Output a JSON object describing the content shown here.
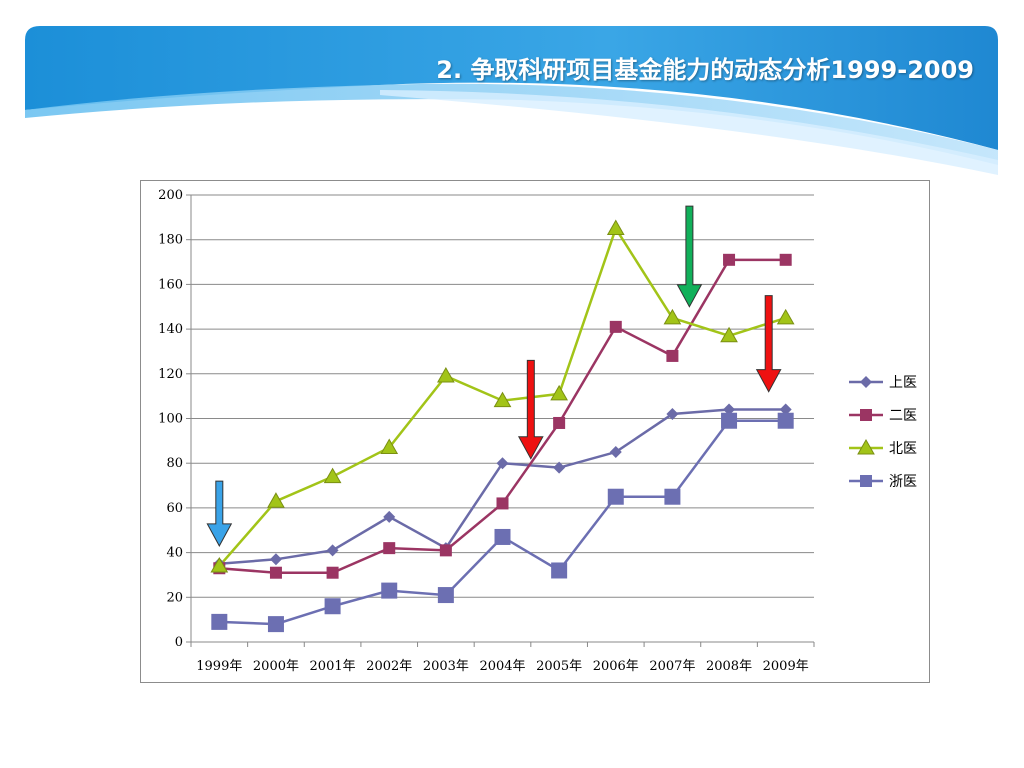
{
  "slide": {
    "title": "2. 争取科研项目基金能力的动态分析1999-2009"
  },
  "chart_data": {
    "type": "line",
    "title": "",
    "xlabel": "",
    "ylabel": "",
    "categories": [
      "1999年",
      "2000年",
      "2001年",
      "2002年",
      "2003年",
      "2004年",
      "2005年",
      "2006年",
      "2007年",
      "2008年",
      "2009年"
    ],
    "ylim": [
      0,
      200
    ],
    "yticks": [
      0,
      20,
      40,
      60,
      80,
      100,
      120,
      140,
      160,
      180,
      200
    ],
    "grid": true,
    "legend": "right",
    "series": [
      {
        "name": "上医",
        "color": "#6b6ba8",
        "marker": "diamond",
        "values": [
          35,
          37,
          41,
          56,
          42,
          80,
          78,
          85,
          102,
          104,
          104
        ]
      },
      {
        "name": "二医",
        "color": "#9b3563",
        "marker": "square",
        "values": [
          33,
          31,
          31,
          42,
          41,
          62,
          98,
          141,
          128,
          171,
          171
        ]
      },
      {
        "name": "北医",
        "color": "#a2c418",
        "marker": "triangle",
        "values": [
          34,
          63,
          74,
          87,
          119,
          108,
          111,
          185,
          145,
          137,
          145
        ]
      },
      {
        "name": "浙医",
        "color": "#6c6fb2",
        "marker": "bigsquare",
        "values": [
          9,
          8,
          16,
          23,
          21,
          47,
          32,
          65,
          65,
          99,
          99
        ]
      }
    ],
    "annotations": [
      {
        "type": "arrow-down",
        "color": "#3aa3e8",
        "x_index": 0,
        "from": 72,
        "to": 43
      },
      {
        "type": "arrow-down",
        "color": "#ee1111",
        "x_index": 5.5,
        "from": 126,
        "to": 82
      },
      {
        "type": "arrow-down",
        "color": "#11b05a",
        "x_index": 8.3,
        "from": 195,
        "to": 150
      },
      {
        "type": "arrow-down",
        "color": "#ee1111",
        "x_index": 9.7,
        "from": 155,
        "to": 112
      }
    ]
  }
}
